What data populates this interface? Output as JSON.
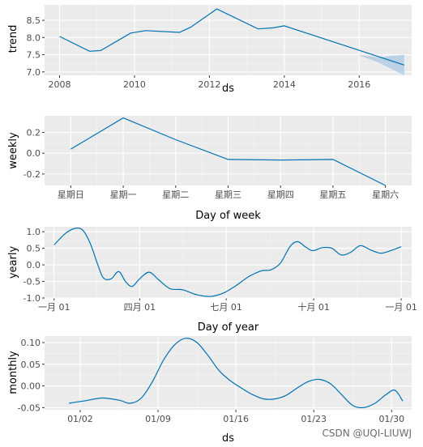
{
  "colors": {
    "panel_bg": "#ebebeb",
    "grid_major": "#ffffff",
    "grid_minor": "#f5f5f5",
    "line": "#0072b2",
    "band": "#a6c8e3"
  },
  "watermark": "CSDN @UQI-LIUWJ",
  "chart_data": [
    {
      "type": "line",
      "xlabel": "ds",
      "ylabel": "trend",
      "xlim": [
        2007.6,
        2017.4
      ],
      "ylim": [
        6.9,
        8.95
      ],
      "xticks": [
        2008,
        2010,
        2012,
        2014,
        2016
      ],
      "xtick_labels": [
        "2008",
        "2010",
        "2012",
        "2014",
        "2016"
      ],
      "yticks": [
        7.0,
        7.5,
        8.0,
        8.5
      ],
      "ytick_labels": [
        "7.0",
        "7.5",
        "8.0",
        "8.5"
      ],
      "x": [
        2008.0,
        2008.8,
        2009.1,
        2009.9,
        2010.3,
        2011.2,
        2011.5,
        2012.2,
        2013.3,
        2013.7,
        2014.0,
        2017.2
      ],
      "y": [
        8.03,
        7.6,
        7.62,
        8.13,
        8.2,
        8.15,
        8.3,
        8.83,
        8.25,
        8.28,
        8.34,
        7.2
      ],
      "band": {
        "x": [
          2016.0,
          2016.5,
          2017.2
        ],
        "lower": [
          7.48,
          7.28,
          6.9
        ],
        "upper": [
          7.5,
          7.42,
          7.5
        ]
      }
    },
    {
      "type": "line",
      "xlabel": "Day of week",
      "ylabel": "weekly",
      "xlim": [
        0.5,
        7.5
      ],
      "ylim": [
        -0.31,
        0.36
      ],
      "xticks": [
        1,
        2,
        3,
        4,
        5,
        6,
        7
      ],
      "xtick_labels": [
        "星期日",
        "星期一",
        "星期二",
        "星期三",
        "星期四",
        "星期五",
        "星期六"
      ],
      "yticks": [
        -0.2,
        0.0,
        0.2
      ],
      "ytick_labels": [
        "-0.2",
        "0.0",
        "0.2"
      ],
      "x": [
        1,
        2,
        3,
        4,
        5,
        6,
        7
      ],
      "y": [
        0.04,
        0.34,
        0.13,
        -0.06,
        -0.065,
        -0.06,
        -0.31
      ]
    },
    {
      "type": "line",
      "xlabel": "Day of year",
      "ylabel": "yearly",
      "xlim": [
        -10,
        376
      ],
      "ylim": [
        -1.0,
        1.15
      ],
      "xticks": [
        0,
        90,
        181,
        273,
        365
      ],
      "xtick_labels": [
        "一月 01",
        "四月 01",
        "七月 01",
        "十月 01",
        "一月 01"
      ],
      "yticks": [
        -1.0,
        -0.5,
        0.0,
        0.5,
        1.0
      ],
      "ytick_labels": [
        "-1.0",
        "-0.5",
        "0.0",
        "0.5",
        "1.0"
      ],
      "x": [
        0,
        12,
        22,
        30,
        38,
        46,
        52,
        60,
        68,
        75,
        82,
        90,
        100,
        110,
        122,
        135,
        150,
        165,
        178,
        190,
        205,
        218,
        228,
        238,
        248,
        256,
        264,
        272,
        282,
        292,
        302,
        312,
        322,
        333,
        344,
        356,
        365
      ],
      "y": [
        0.6,
        0.95,
        1.1,
        1.05,
        0.65,
        0.0,
        -0.4,
        -0.42,
        -0.2,
        -0.5,
        -0.65,
        -0.42,
        -0.22,
        -0.45,
        -0.72,
        -0.75,
        -0.9,
        -0.95,
        -0.85,
        -0.65,
        -0.35,
        -0.18,
        -0.15,
        0.05,
        0.55,
        0.7,
        0.55,
        0.43,
        0.52,
        0.5,
        0.3,
        0.38,
        0.58,
        0.45,
        0.35,
        0.45,
        0.55
      ]
    },
    {
      "type": "line",
      "xlabel": "ds",
      "ylabel": "monthly",
      "xlim": [
        -2.2,
        30.8
      ],
      "ylim": [
        -0.055,
        0.115
      ],
      "xticks": [
        1,
        8,
        15,
        22,
        29
      ],
      "xtick_labels": [
        "01/02",
        "01/09",
        "01/16",
        "01/23",
        "01/30"
      ],
      "yticks": [
        -0.05,
        0.0,
        0.05,
        0.1
      ],
      "ytick_labels": [
        "-0.05",
        "0.00",
        "0.05",
        "0.10"
      ],
      "x": [
        0,
        1.5,
        3,
        4.5,
        5.5,
        6.5,
        7.5,
        8.5,
        9.5,
        10.5,
        11.5,
        12.5,
        13.5,
        14.5,
        15.5,
        16.5,
        17.5,
        18.5,
        19.5,
        20.5,
        21.5,
        22.5,
        23.5,
        24.5,
        25.5,
        26.5,
        27.5,
        28.5,
        29.3,
        30.0
      ],
      "y": [
        -0.04,
        -0.034,
        -0.028,
        -0.033,
        -0.04,
        -0.028,
        0.01,
        0.06,
        0.095,
        0.11,
        0.1,
        0.07,
        0.035,
        0.012,
        -0.005,
        -0.02,
        -0.03,
        -0.03,
        -0.022,
        -0.005,
        0.01,
        0.015,
        0.005,
        -0.02,
        -0.045,
        -0.05,
        -0.04,
        -0.02,
        -0.01,
        -0.035
      ]
    }
  ]
}
